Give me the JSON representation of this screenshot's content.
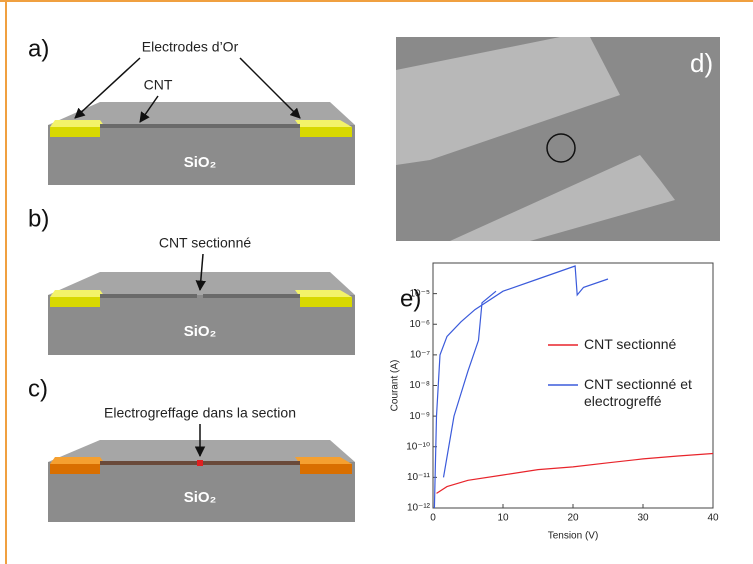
{
  "panels": {
    "a": {
      "label": "a)",
      "electrodes": "Electrodes d’Or",
      "cnt": "CNT",
      "substrate": "SiO₂"
    },
    "b": {
      "label": "b)",
      "cnt": "CNT sectionné",
      "substrate": "SiO₂"
    },
    "c": {
      "label": "c)",
      "section": "Electrogreffage dans la section",
      "substrate": "SiO₂"
    },
    "d": {
      "label": "d)"
    },
    "e": {
      "label": "e)"
    }
  },
  "chart_data": {
    "type": "line",
    "x_label": "Tension (V)",
    "y_label": "Courant (A)",
    "log_y": true,
    "xlim": [
      0,
      40
    ],
    "xticks": [
      0,
      10,
      20,
      30,
      40
    ],
    "ylim": [
      1e-12,
      0.0001
    ],
    "yticks": [
      {
        "value": 1e-12,
        "label": "10⁻¹²"
      },
      {
        "value": 1e-11,
        "label": "10⁻¹¹"
      },
      {
        "value": 1e-10,
        "label": "10⁻¹⁰"
      },
      {
        "value": 1e-09,
        "label": "10⁻⁹"
      },
      {
        "value": 1e-08,
        "label": "10⁻⁸"
      },
      {
        "value": 1e-07,
        "label": "10⁻⁷"
      },
      {
        "value": 1e-06,
        "label": "10⁻⁶"
      },
      {
        "value": 1e-05,
        "label": "10⁻⁵"
      }
    ],
    "series": [
      {
        "name": "CNT sectionné",
        "color": "#e8242b",
        "x": [
          0.5,
          2,
          5,
          10,
          15,
          20,
          25,
          30,
          35,
          40
        ],
        "values": [
          3e-12,
          5e-12,
          8e-12,
          1.2e-11,
          1.8e-11,
          2.2e-11,
          3e-11,
          4e-11,
          5e-11,
          6e-11
        ]
      },
      {
        "name": "CNT sectionné et electrogreffé",
        "color": "#3b5bdb",
        "x": [
          0.2,
          0.5,
          1,
          2,
          4,
          6,
          10,
          15,
          20.3,
          20.6,
          21.5,
          25,
          null,
          1.5,
          3,
          5,
          6.5,
          7,
          9
        ],
        "values": [
          1e-12,
          1e-09,
          1e-07,
          4e-07,
          1.2e-06,
          3e-06,
          1.2e-05,
          3e-05,
          8e-05,
          9e-06,
          1.6e-05,
          3e-05,
          null,
          1e-11,
          1e-09,
          3e-08,
          3e-07,
          5e-06,
          1.2e-05
        ]
      }
    ]
  }
}
